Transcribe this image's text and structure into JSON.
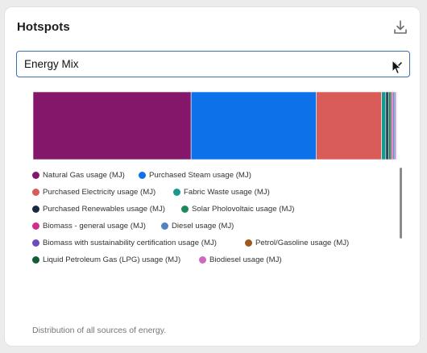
{
  "panel": {
    "title": "Hotspots",
    "download_icon": "download-icon"
  },
  "dropdown": {
    "selected": "Energy Mix",
    "icon": "chevron-down-icon"
  },
  "chart_data": {
    "type": "bar",
    "orientation": "horizontal-stacked",
    "unit": "share of total energy (%)",
    "series": [
      {
        "name": "Natural Gas usage (MJ)",
        "value": 43.4,
        "color": "#84176a"
      },
      {
        "name": "Purchased Steam usage (MJ)",
        "value": 34.4,
        "color": "#0d72ea"
      },
      {
        "name": "Purchased Electricity usage (MJ)",
        "value": 17.9,
        "color": "#d95c58"
      },
      {
        "name": "Fabric Waste usage (MJ)",
        "value": 1.2,
        "color": "#17998f"
      },
      {
        "name": "Purchased Renewables usage (MJ)",
        "value": 0.7,
        "color": "#152a44"
      },
      {
        "name": "Solar Pholovoltaic usage (MJ)",
        "value": 0.7,
        "color": "#1d8a5c"
      },
      {
        "name": "Biomass - general usage (MJ)",
        "value": 0.5,
        "color": "#d22d8c"
      },
      {
        "name": "Diesel usage (MJ)",
        "value": 0.5,
        "color": "#5282c1"
      },
      {
        "name": "Biomass with sustainability certification usage (MJ)",
        "value": 0.3,
        "color": "#6a4ec0"
      },
      {
        "name": "Petrol/Gasoline usage (MJ)",
        "value": 0.2,
        "color": "#9e5a1a"
      },
      {
        "name": "Liquid Petroleum Gas (LPG) usage (MJ)",
        "value": 0.1,
        "color": "#125c3a"
      },
      {
        "name": "Biodiesel usage (MJ)",
        "value": 0.1,
        "color": "#cf68c0"
      }
    ]
  },
  "caption": "Distribution of all sources of energy."
}
